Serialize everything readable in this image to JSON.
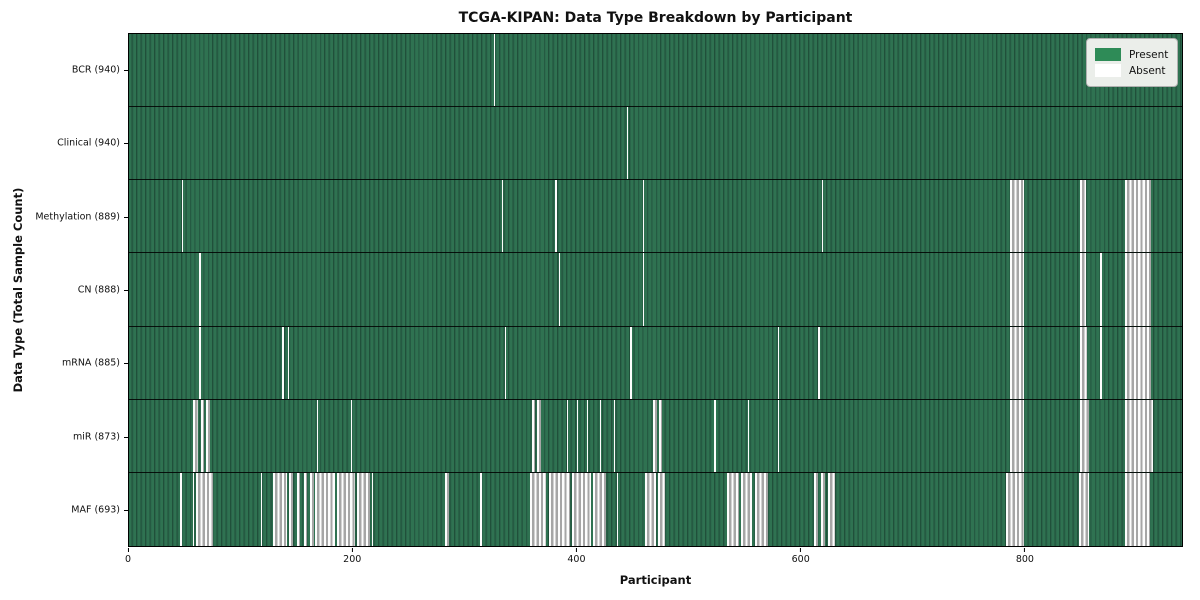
{
  "title": "TCGA-KIPAN: Data Type Breakdown by Participant",
  "colors": {
    "present_green": "#2e8b57",
    "present_dark_edge": "#20503a",
    "absent_white": "#ffffff",
    "absent_gray_edge": "#a6a6a6",
    "spine": "#000000",
    "legend_bg": "#ebeeea",
    "legend_border": "#b0b0b0"
  },
  "legend": {
    "items": [
      {
        "label": "Present",
        "color": "#2e8b57"
      },
      {
        "label": "Absent",
        "color": "#ffffff"
      }
    ]
  },
  "chart_data": {
    "type": "heatmap",
    "title": "TCGA-KIPAN: Data Type Breakdown by Participant",
    "xlabel": "Participant",
    "ylabel": "Data Type (Total Sample Count)",
    "xlim": [
      0,
      941
    ],
    "x_ticks": [
      0,
      200,
      400,
      600,
      800
    ],
    "grid": false,
    "legend_position": "upper right",
    "cell_states": [
      "Present",
      "Absent"
    ],
    "rows": [
      {
        "label": "BCR (940)",
        "data_type": "BCR",
        "total_sample_count": 940,
        "absent_ranges": [
          [
            326,
            326
          ]
        ]
      },
      {
        "label": "Clinical (940)",
        "data_type": "Clinical",
        "total_sample_count": 940,
        "absent_ranges": [
          [
            445,
            445
          ]
        ]
      },
      {
        "label": "Methylation (889)",
        "data_type": "Methylation",
        "total_sample_count": 889,
        "absent_ranges": [
          [
            47,
            47
          ],
          [
            333,
            333
          ],
          [
            381,
            381
          ],
          [
            459,
            459
          ],
          [
            619,
            619
          ],
          [
            787,
            799
          ],
          [
            850,
            854
          ],
          [
            890,
            912
          ]
        ]
      },
      {
        "label": "CN (888)",
        "data_type": "CN",
        "total_sample_count": 888,
        "absent_ranges": [
          [
            63,
            63
          ],
          [
            384,
            384
          ],
          [
            459,
            459
          ],
          [
            787,
            799
          ],
          [
            850,
            854
          ],
          [
            868,
            868
          ],
          [
            890,
            912
          ]
        ]
      },
      {
        "label": "mRNA (885)",
        "data_type": "mRNA",
        "total_sample_count": 885,
        "absent_ranges": [
          [
            63,
            63
          ],
          [
            137,
            137
          ],
          [
            142,
            142
          ],
          [
            336,
            336
          ],
          [
            448,
            448
          ],
          [
            580,
            580
          ],
          [
            616,
            616
          ],
          [
            787,
            799
          ],
          [
            850,
            855
          ],
          [
            868,
            868
          ],
          [
            890,
            912
          ]
        ]
      },
      {
        "label": "miR (873)",
        "data_type": "miR",
        "total_sample_count": 873,
        "absent_ranges": [
          [
            57,
            61
          ],
          [
            64,
            66
          ],
          [
            69,
            71
          ],
          [
            168,
            168
          ],
          [
            198,
            198
          ],
          [
            360,
            362
          ],
          [
            365,
            367
          ],
          [
            391,
            391
          ],
          [
            400,
            400
          ],
          [
            409,
            409
          ],
          [
            421,
            421
          ],
          [
            433,
            433
          ],
          [
            468,
            471
          ],
          [
            474,
            475
          ],
          [
            523,
            523
          ],
          [
            553,
            553
          ],
          [
            580,
            580
          ],
          [
            787,
            799
          ],
          [
            850,
            857
          ],
          [
            890,
            914
          ]
        ]
      },
      {
        "label": "MAF (693)",
        "data_type": "MAF",
        "total_sample_count": 693,
        "absent_ranges": [
          [
            46,
            46
          ],
          [
            57,
            57
          ],
          [
            60,
            74
          ],
          [
            118,
            118
          ],
          [
            129,
            140
          ],
          [
            143,
            146
          ],
          [
            150,
            152
          ],
          [
            156,
            158
          ],
          [
            162,
            164
          ],
          [
            166,
            183
          ],
          [
            186,
            201
          ],
          [
            204,
            214
          ],
          [
            217,
            217
          ],
          [
            282,
            285
          ],
          [
            314,
            314
          ],
          [
            358,
            372
          ],
          [
            375,
            393
          ],
          [
            396,
            412
          ],
          [
            415,
            425
          ],
          [
            436,
            436
          ],
          [
            461,
            470
          ],
          [
            473,
            478
          ],
          [
            534,
            544
          ],
          [
            547,
            556
          ],
          [
            559,
            570
          ],
          [
            612,
            615
          ],
          [
            618,
            621
          ],
          [
            625,
            630
          ],
          [
            784,
            799
          ],
          [
            849,
            857
          ],
          [
            890,
            911
          ]
        ]
      }
    ]
  }
}
